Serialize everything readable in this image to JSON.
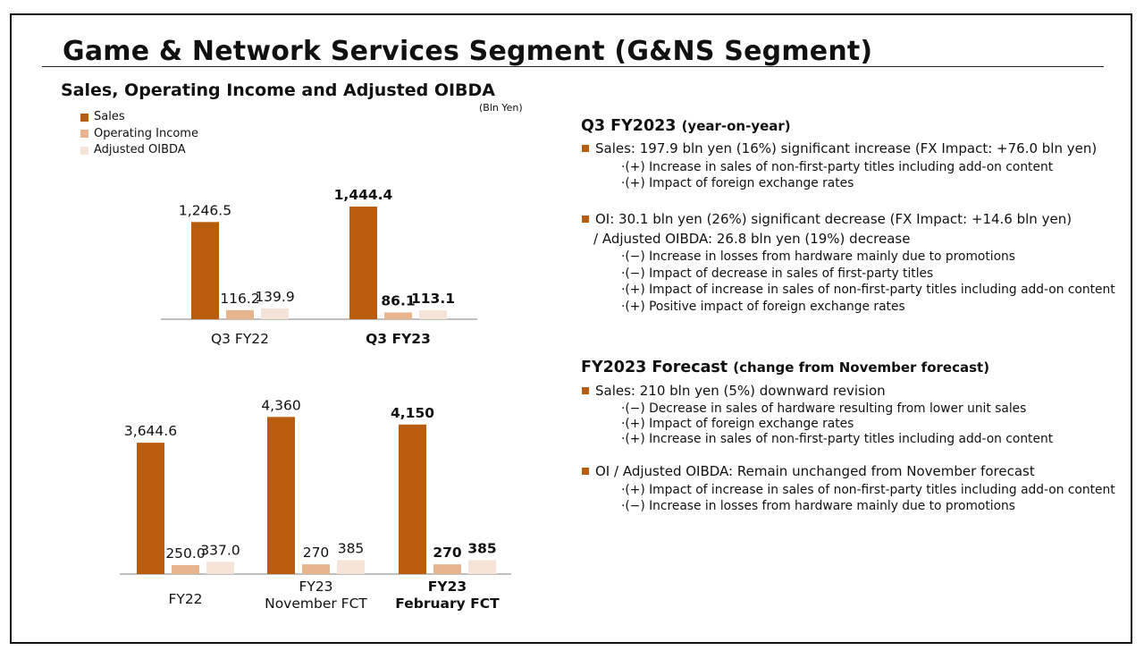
{
  "title": "Game & Network Services Segment (G&NS Segment)",
  "chart_section": {
    "subtitle": "Sales, Operating Income and Adjusted OIBDA",
    "unit": "(Bln Yen)"
  },
  "colors": {
    "sales": "#b85c0d",
    "oi": "#e8b48e",
    "oibda": "#f6e3d7",
    "bullet": "#b85c0d",
    "axis": "#999999"
  },
  "chart_data": [
    {
      "type": "bar",
      "title": "Sales, Operating Income and Adjusted OIBDA",
      "ylabel": "Bln Yen",
      "legend": [
        "Sales",
        "Operating Income",
        "Adjusted OIBDA"
      ],
      "categories": [
        {
          "label": [
            "Q3 FY22"
          ],
          "bold": false
        },
        {
          "label": [
            "Q3 FY23"
          ],
          "bold": true
        }
      ],
      "series": [
        {
          "name": "Sales",
          "values": [
            1246.5,
            1444.4
          ],
          "labels": [
            "1,246.5",
            "1,444.4"
          ]
        },
        {
          "name": "Operating Income",
          "values": [
            116.2,
            86.1
          ],
          "labels": [
            "116.2",
            "86.1"
          ]
        },
        {
          "name": "Adjusted OIBDA",
          "values": [
            139.9,
            113.1
          ],
          "labels": [
            "139.9",
            "113.1"
          ]
        }
      ]
    },
    {
      "type": "bar",
      "title": "FY2023 Forecast",
      "ylabel": "Bln Yen",
      "legend": [
        "Sales",
        "Operating Income",
        "Adjusted OIBDA"
      ],
      "categories": [
        {
          "label": [
            "FY22"
          ],
          "bold": false
        },
        {
          "label": [
            "FY23",
            "November FCT"
          ],
          "bold": false
        },
        {
          "label": [
            "FY23",
            "February FCT"
          ],
          "bold": true
        }
      ],
      "series": [
        {
          "name": "Sales",
          "values": [
            3644.6,
            4360,
            4150
          ],
          "labels": [
            "3,644.6",
            "4,360",
            "4,150"
          ]
        },
        {
          "name": "Operating Income",
          "values": [
            250.0,
            270,
            270
          ],
          "labels": [
            "250.0",
            "270",
            "270"
          ]
        },
        {
          "name": "Adjusted OIBDA",
          "values": [
            337.0,
            385,
            385
          ],
          "labels": [
            "337.0",
            "385",
            "385"
          ]
        }
      ]
    }
  ],
  "q3": {
    "heading": "Q3 FY2023",
    "heading_note": "(year-on-year)",
    "sales_bullet": "Sales: 197.9 bln yen (16%) significant increase (FX Impact: +76.0 bln yen)",
    "sales_points": [
      "·(+) Increase in sales of non-first-party titles including add-on content",
      "·(+) Impact of foreign exchange rates"
    ],
    "oi_bullet": "OI:  30.1 bln yen (26%) significant decrease  (FX Impact: +14.6 bln yen)",
    "oi_bullet_cont": "/ Adjusted OIBDA: 26.8 bln yen (19%) decrease",
    "oi_points": [
      "·(−) Increase in losses from hardware mainly due to promotions",
      "·(−) Impact of decrease in sales of first-party titles",
      "·(+) Impact of increase in sales of non-first-party titles including add-on content",
      "·(+) Positive impact of foreign exchange rates"
    ]
  },
  "forecast": {
    "heading": "FY2023 Forecast",
    "heading_note": "(change from November forecast)",
    "sales_bullet": "Sales: 210 bln yen (5%) downward revision",
    "sales_points": [
      "·(−) Decrease in sales of hardware resulting from lower unit sales",
      "·(+) Impact of foreign exchange rates",
      "·(+) Increase in sales of non-first-party titles including add-on content"
    ],
    "oi_bullet": "OI / Adjusted OIBDA: Remain unchanged from November forecast",
    "oi_points": [
      "·(+) Impact of increase in sales of non-first-party titles including add-on content",
      "·(−) Increase in losses from hardware mainly due to promotions"
    ]
  }
}
